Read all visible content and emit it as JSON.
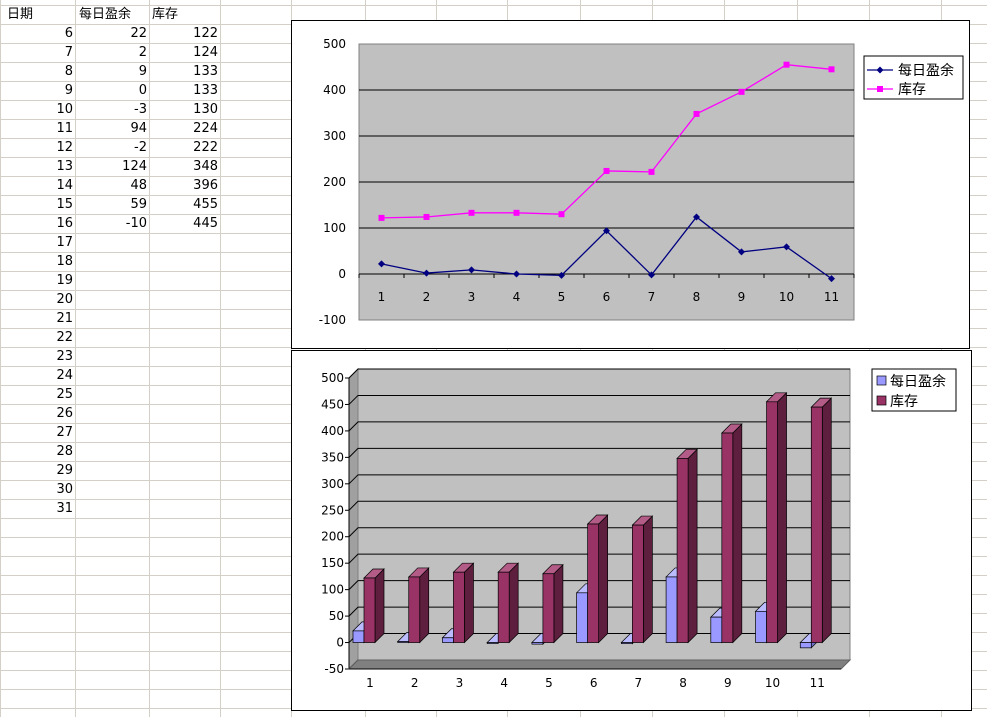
{
  "sheet": {
    "headers": [
      "日期",
      "每日盈余",
      "库存"
    ],
    "rows": [
      {
        "date": "6",
        "profit": "22",
        "stock": "122"
      },
      {
        "date": "7",
        "profit": "2",
        "stock": "124"
      },
      {
        "date": "8",
        "profit": "9",
        "stock": "133"
      },
      {
        "date": "9",
        "profit": "0",
        "stock": "133"
      },
      {
        "date": "10",
        "profit": "-3",
        "stock": "130"
      },
      {
        "date": "11",
        "profit": "94",
        "stock": "224"
      },
      {
        "date": "12",
        "profit": "-2",
        "stock": "222"
      },
      {
        "date": "13",
        "profit": "124",
        "stock": "348"
      },
      {
        "date": "14",
        "profit": "48",
        "stock": "396"
      },
      {
        "date": "15",
        "profit": "59",
        "stock": "455"
      },
      {
        "date": "16",
        "profit": "-10",
        "stock": "445"
      },
      {
        "date": "17",
        "profit": "",
        "stock": ""
      },
      {
        "date": "18",
        "profit": "",
        "stock": ""
      },
      {
        "date": "19",
        "profit": "",
        "stock": ""
      },
      {
        "date": "20",
        "profit": "",
        "stock": ""
      },
      {
        "date": "21",
        "profit": "",
        "stock": ""
      },
      {
        "date": "22",
        "profit": "",
        "stock": ""
      },
      {
        "date": "23",
        "profit": "",
        "stock": ""
      },
      {
        "date": "24",
        "profit": "",
        "stock": ""
      },
      {
        "date": "25",
        "profit": "",
        "stock": ""
      },
      {
        "date": "26",
        "profit": "",
        "stock": ""
      },
      {
        "date": "27",
        "profit": "",
        "stock": ""
      },
      {
        "date": "28",
        "profit": "",
        "stock": ""
      },
      {
        "date": "29",
        "profit": "",
        "stock": ""
      },
      {
        "date": "30",
        "profit": "",
        "stock": ""
      },
      {
        "date": "31",
        "profit": "",
        "stock": ""
      }
    ]
  },
  "colors": {
    "grid_line": "#d4d0c8",
    "plot_area": "#c0c0c0",
    "profit_line": "#000080",
    "stock_line": "#ff00ff",
    "profit_bar": "#9999ff",
    "stock_bar": "#993366"
  },
  "chart_data": [
    {
      "type": "line",
      "categories": [
        "1",
        "2",
        "3",
        "4",
        "5",
        "6",
        "7",
        "8",
        "9",
        "10",
        "11"
      ],
      "series": [
        {
          "name": "每日盈余",
          "values": [
            22,
            2,
            9,
            0,
            -3,
            94,
            -2,
            124,
            48,
            59,
            -10
          ]
        },
        {
          "name": "库存",
          "values": [
            122,
            124,
            133,
            133,
            130,
            224,
            222,
            348,
            396,
            455,
            445
          ]
        }
      ],
      "ylim": [
        -100,
        500
      ],
      "yticks": [
        "500",
        "400",
        "300",
        "200",
        "100",
        "0",
        "-100"
      ],
      "grid": true,
      "legend": "right"
    },
    {
      "type": "bar",
      "categories": [
        "1",
        "2",
        "3",
        "4",
        "5",
        "6",
        "7",
        "8",
        "9",
        "10",
        "11"
      ],
      "series": [
        {
          "name": "每日盈余",
          "values": [
            22,
            2,
            9,
            0,
            -3,
            94,
            -2,
            124,
            48,
            59,
            -10
          ]
        },
        {
          "name": "库存",
          "values": [
            122,
            124,
            133,
            133,
            130,
            224,
            222,
            348,
            396,
            455,
            445
          ]
        }
      ],
      "ylim": [
        -50,
        500
      ],
      "yticks": [
        "500",
        "450",
        "400",
        "350",
        "300",
        "250",
        "200",
        "150",
        "100",
        "50",
        "0",
        "-50"
      ],
      "grid": true,
      "legend": "right"
    }
  ]
}
